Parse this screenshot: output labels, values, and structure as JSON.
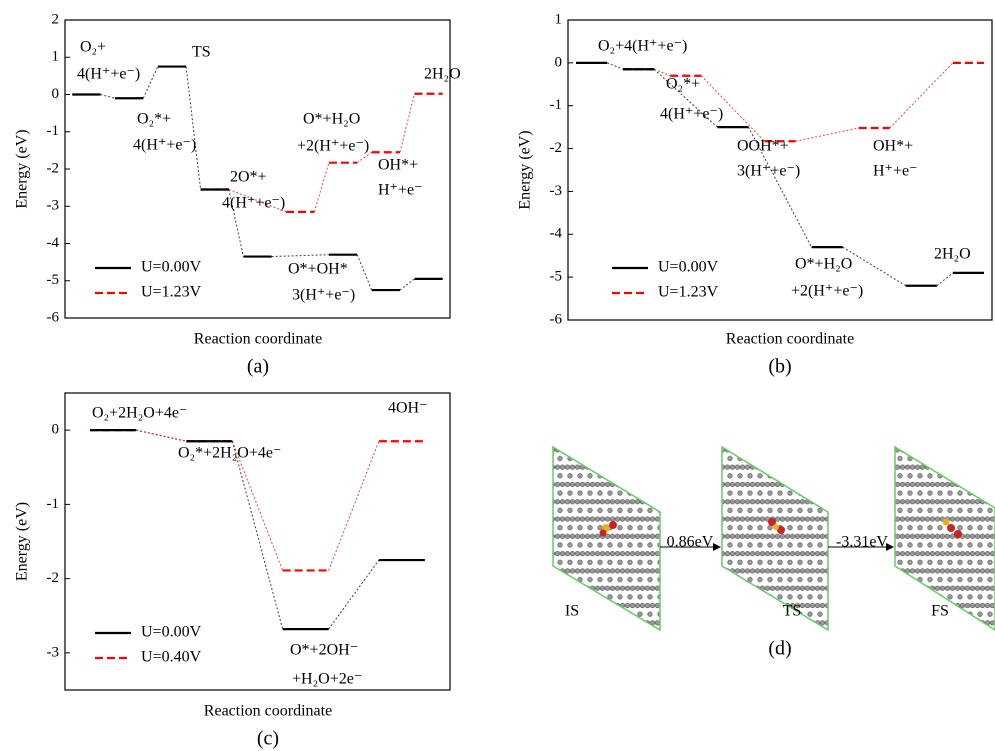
{
  "chart_data": [
    {
      "type": "energy",
      "ylabel": "Energy (eV)",
      "xlabel": "Reaction coordinate",
      "panel": "(a)",
      "categories": [
        null,
        null,
        null,
        null,
        null,
        null,
        null,
        null,
        null
      ],
      "series": [
        {
          "name": "U=0.00V",
          "color": "#000000",
          "values": [
            0,
            -0.1,
            0.75,
            -2.55,
            -4.35,
            null,
            -4.3,
            -5.25,
            -4.95
          ]
        },
        {
          "name": "U=1.23V",
          "color": "#ff0000",
          "values": [
            null,
            null,
            null,
            -2.55,
            null,
            -3.15,
            -1.83,
            -1.55,
            0.02
          ]
        }
      ],
      "ylim": [
        -6,
        2
      ],
      "yticks": [
        -6,
        -5,
        -4,
        -3,
        -2,
        -1,
        0,
        1,
        2
      ],
      "legend": "lower left",
      "annotations": [
        "O₂+",
        "4(H⁺+e⁻)",
        "TS",
        "O₂*+",
        "4(H⁺+e⁻)",
        "2O*+",
        "4(H⁺+e⁻)",
        "O*+H₂O",
        "+2(H⁺+e⁻)",
        "OH*+",
        "H⁺+e⁻",
        "2H₂O",
        "O*+OH*",
        "3(H⁺+e⁻)"
      ]
    },
    {
      "type": "energy",
      "ylabel": "Energy (eV)",
      "xlabel": "Reaction coordinate",
      "panel": "(b)",
      "categories": [
        null,
        null,
        null,
        null,
        null,
        null,
        null,
        null,
        null
      ],
      "series": [
        {
          "name": "U=0.00V",
          "color": "#000000",
          "values": [
            0,
            -0.15,
            null,
            -1.5,
            null,
            -4.3,
            null,
            -5.2,
            -4.9
          ]
        },
        {
          "name": "U=1.23V",
          "color": "#ff0000",
          "values": [
            null,
            -0.15,
            -0.3,
            null,
            -1.83,
            null,
            -1.52,
            null,
            0
          ]
        }
      ],
      "ylim": [
        -6,
        1
      ],
      "yticks": [
        -6,
        -5,
        -4,
        -3,
        -2,
        -1,
        0,
        1
      ],
      "legend": "lower left",
      "annotations": [
        "O₂+4(H⁺+e⁻)",
        "O₂*+",
        "4(H⁺+e⁻)",
        "OOH*+",
        "3(H⁺+e⁻)",
        "OH*+",
        "H⁺+e⁻",
        "O*+H₂O",
        "+2(H⁺+e⁻)",
        "2H₂O"
      ]
    },
    {
      "type": "energy",
      "ylabel": "Energy (eV)",
      "xlabel": "Reaction coordinate",
      "panel": "(c)",
      "categories": [
        null,
        null,
        null,
        null
      ],
      "series": [
        {
          "name": "U=0.00V",
          "color": "#000000",
          "values": [
            0,
            -0.15,
            -2.68,
            -1.75
          ]
        },
        {
          "name": "U=0.40V",
          "color": "#ff0000",
          "values": [
            0,
            -0.15,
            -1.89,
            -0.15
          ]
        }
      ],
      "ylim": [
        -3.5,
        0.5
      ],
      "yticks": [
        -3,
        -2,
        -1,
        0
      ],
      "legend": "lower left",
      "annotations": [
        "O₂+2H₂O+4e⁻",
        "O₂*+2H₂O+4e⁻",
        "4OH⁻",
        "O*+2OH⁻",
        "+H₂O+2e⁻"
      ]
    }
  ],
  "panel_d": {
    "states": [
      "IS",
      "TS",
      "FS"
    ],
    "barriers": [
      "0.86eV",
      "-3.31eV"
    ],
    "label": "(d)"
  }
}
